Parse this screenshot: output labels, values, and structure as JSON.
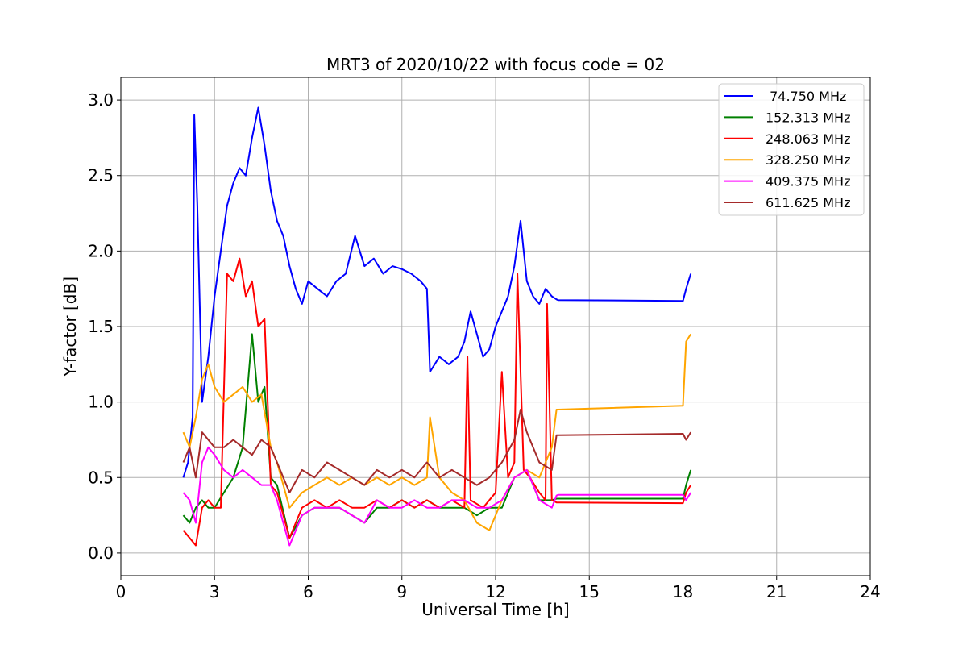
{
  "chart_data": {
    "type": "line",
    "title": "MRT3 of 2020/10/22 with focus code = 02",
    "xlabel": "Universal Time [h]",
    "ylabel": "Y-factor [dB]",
    "xlim": [
      0,
      24
    ],
    "ylim": [
      -0.15,
      3.15
    ],
    "xticks": [
      0,
      3,
      6,
      9,
      12,
      15,
      18,
      21,
      24
    ],
    "xtick_labels": [
      "0",
      "3",
      "6",
      "9",
      "12",
      "15",
      "18",
      "21",
      "24"
    ],
    "yticks": [
      0.0,
      0.5,
      1.0,
      1.5,
      2.0,
      2.5,
      3.0
    ],
    "ytick_labels": [
      "0.0",
      "0.5",
      "1.0",
      "1.5",
      "2.0",
      "2.5",
      "3.0"
    ],
    "grid": true,
    "legend_position": "top-right",
    "series": [
      {
        "name": " 74.750 MHz",
        "color": "#0000ff",
        "x": [
          2.0,
          2.15,
          2.3,
          2.35,
          2.45,
          2.6,
          2.8,
          3.0,
          3.2,
          3.4,
          3.6,
          3.8,
          4.0,
          4.2,
          4.4,
          4.6,
          4.8,
          5.0,
          5.2,
          5.4,
          5.6,
          5.8,
          6.0,
          6.3,
          6.6,
          6.9,
          7.2,
          7.5,
          7.8,
          8.1,
          8.4,
          8.7,
          9.0,
          9.3,
          9.6,
          9.8,
          9.9,
          10.2,
          10.5,
          10.8,
          11.0,
          11.2,
          11.4,
          11.6,
          11.8,
          12.0,
          12.2,
          12.4,
          12.6,
          12.8,
          13.0,
          13.2,
          13.4,
          13.6,
          13.8,
          13.95,
          14.0,
          18.0,
          18.1,
          18.25
        ],
        "y": [
          0.5,
          0.6,
          0.9,
          2.9,
          2.3,
          1.0,
          1.3,
          1.7,
          2.0,
          2.3,
          2.45,
          2.55,
          2.5,
          2.75,
          2.95,
          2.7,
          2.4,
          2.2,
          2.1,
          1.9,
          1.75,
          1.65,
          1.8,
          1.75,
          1.7,
          1.8,
          1.85,
          2.1,
          1.9,
          1.95,
          1.85,
          1.9,
          1.88,
          1.85,
          1.8,
          1.75,
          1.2,
          1.3,
          1.25,
          1.3,
          1.4,
          1.6,
          1.45,
          1.3,
          1.35,
          1.5,
          1.6,
          1.7,
          1.9,
          2.2,
          1.8,
          1.7,
          1.65,
          1.75,
          1.7,
          1.68,
          1.675,
          1.67,
          1.75,
          1.85
        ]
      },
      {
        "name": "152.313 MHz",
        "color": "#008000",
        "x": [
          2.0,
          2.2,
          2.4,
          2.6,
          2.8,
          3.0,
          3.3,
          3.6,
          3.9,
          4.2,
          4.4,
          4.6,
          4.8,
          5.0,
          5.4,
          5.8,
          6.2,
          6.6,
          7.0,
          7.4,
          7.8,
          8.2,
          8.6,
          9.0,
          9.4,
          9.8,
          10.2,
          10.6,
          11.0,
          11.4,
          11.8,
          12.2,
          12.6,
          13.0,
          13.4,
          13.8,
          13.95,
          14.0,
          18.0,
          18.1,
          18.25
        ],
        "y": [
          0.25,
          0.2,
          0.3,
          0.35,
          0.3,
          0.3,
          0.4,
          0.5,
          0.7,
          1.45,
          1.0,
          1.1,
          0.5,
          0.45,
          0.1,
          0.25,
          0.3,
          0.3,
          0.3,
          0.25,
          0.2,
          0.3,
          0.3,
          0.35,
          0.3,
          0.35,
          0.3,
          0.3,
          0.3,
          0.25,
          0.3,
          0.3,
          0.5,
          0.55,
          0.35,
          0.35,
          0.36,
          0.36,
          0.36,
          0.45,
          0.55
        ]
      },
      {
        "name": "248.063 MHz",
        "color": "#ff0000",
        "x": [
          2.0,
          2.2,
          2.4,
          2.6,
          2.8,
          3.0,
          3.2,
          3.4,
          3.6,
          3.8,
          4.0,
          4.2,
          4.4,
          4.6,
          4.8,
          5.0,
          5.4,
          5.8,
          6.2,
          6.6,
          7.0,
          7.4,
          7.8,
          8.2,
          8.6,
          9.0,
          9.4,
          9.8,
          10.2,
          10.6,
          11.0,
          11.1,
          11.2,
          11.6,
          12.0,
          12.2,
          12.4,
          12.6,
          12.7,
          12.9,
          13.1,
          13.4,
          13.6,
          13.65,
          13.8,
          13.95,
          14.0,
          18.0,
          18.1,
          18.25
        ],
        "y": [
          0.15,
          0.1,
          0.05,
          0.3,
          0.35,
          0.3,
          0.3,
          1.85,
          1.8,
          1.95,
          1.7,
          1.8,
          1.5,
          1.55,
          0.45,
          0.4,
          0.1,
          0.3,
          0.35,
          0.3,
          0.35,
          0.3,
          0.3,
          0.35,
          0.3,
          0.35,
          0.3,
          0.35,
          0.3,
          0.35,
          0.3,
          1.3,
          0.35,
          0.3,
          0.4,
          1.2,
          0.5,
          0.6,
          1.85,
          0.55,
          0.5,
          0.4,
          0.35,
          1.65,
          0.35,
          0.335,
          0.335,
          0.33,
          0.4,
          0.45
        ]
      },
      {
        "name": "328.250 MHz",
        "color": "#ffa500",
        "x": [
          2.0,
          2.2,
          2.4,
          2.6,
          2.8,
          3.0,
          3.3,
          3.6,
          3.9,
          4.2,
          4.5,
          4.8,
          5.0,
          5.4,
          5.8,
          6.2,
          6.6,
          7.0,
          7.4,
          7.8,
          8.2,
          8.6,
          9.0,
          9.4,
          9.8,
          9.9,
          10.2,
          10.6,
          11.0,
          11.4,
          11.8,
          12.2,
          12.6,
          13.0,
          13.4,
          13.8,
          13.95,
          14.0,
          18.0,
          18.1,
          18.25
        ],
        "y": [
          0.8,
          0.7,
          0.9,
          1.15,
          1.25,
          1.1,
          1.0,
          1.05,
          1.1,
          1.0,
          1.05,
          0.7,
          0.6,
          0.3,
          0.4,
          0.45,
          0.5,
          0.45,
          0.5,
          0.45,
          0.5,
          0.45,
          0.5,
          0.45,
          0.5,
          0.9,
          0.5,
          0.4,
          0.35,
          0.2,
          0.15,
          0.35,
          0.5,
          0.55,
          0.5,
          0.7,
          0.95,
          0.95,
          0.975,
          1.4,
          1.45
        ]
      },
      {
        "name": "409.375 MHz",
        "color": "#ff00ff",
        "x": [
          2.0,
          2.2,
          2.4,
          2.6,
          2.8,
          3.0,
          3.3,
          3.6,
          3.9,
          4.2,
          4.5,
          4.8,
          5.0,
          5.2,
          5.4,
          5.8,
          6.2,
          6.6,
          7.0,
          7.4,
          7.8,
          8.2,
          8.6,
          9.0,
          9.4,
          9.8,
          10.2,
          10.6,
          11.0,
          11.4,
          11.8,
          12.2,
          12.6,
          13.0,
          13.4,
          13.8,
          13.95,
          14.0,
          18.0,
          18.1,
          18.25
        ],
        "y": [
          0.4,
          0.35,
          0.2,
          0.6,
          0.7,
          0.65,
          0.55,
          0.5,
          0.55,
          0.5,
          0.45,
          0.45,
          0.35,
          0.2,
          0.05,
          0.25,
          0.3,
          0.3,
          0.3,
          0.25,
          0.2,
          0.35,
          0.3,
          0.3,
          0.35,
          0.3,
          0.3,
          0.35,
          0.35,
          0.3,
          0.3,
          0.35,
          0.5,
          0.55,
          0.35,
          0.3,
          0.38,
          0.385,
          0.385,
          0.35,
          0.4
        ]
      },
      {
        "name": "611.625 MHz",
        "color": "#a52a2a",
        "x": [
          2.0,
          2.2,
          2.4,
          2.6,
          2.8,
          3.0,
          3.3,
          3.6,
          3.9,
          4.2,
          4.5,
          4.8,
          5.0,
          5.4,
          5.8,
          6.2,
          6.6,
          7.0,
          7.4,
          7.8,
          8.2,
          8.6,
          9.0,
          9.4,
          9.8,
          10.2,
          10.6,
          11.0,
          11.4,
          11.8,
          12.2,
          12.6,
          12.8,
          13.0,
          13.4,
          13.8,
          13.95,
          14.0,
          18.0,
          18.1,
          18.25
        ],
        "y": [
          0.6,
          0.7,
          0.5,
          0.8,
          0.75,
          0.7,
          0.7,
          0.75,
          0.7,
          0.65,
          0.75,
          0.7,
          0.6,
          0.4,
          0.55,
          0.5,
          0.6,
          0.55,
          0.5,
          0.45,
          0.55,
          0.5,
          0.55,
          0.5,
          0.6,
          0.5,
          0.55,
          0.5,
          0.45,
          0.5,
          0.6,
          0.75,
          0.95,
          0.8,
          0.6,
          0.55,
          0.78,
          0.78,
          0.79,
          0.75,
          0.8
        ]
      }
    ]
  }
}
